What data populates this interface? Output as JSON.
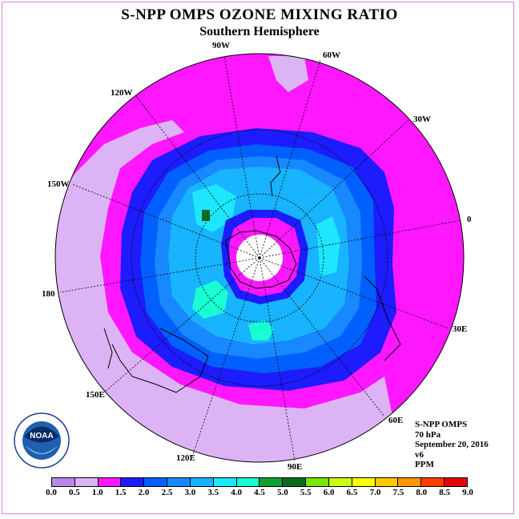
{
  "title": "S-NPP OMPS OZONE MIXING RATIO",
  "subtitle": "Southern Hemisphere",
  "longitude_labels": {
    "lon_90w": "90W",
    "lon_60w": "60W",
    "lon_120w": "120W",
    "lon_30w": "30W",
    "lon_150w": "150W",
    "lon_0": "0",
    "lon_180": "180",
    "lon_30e": "30E",
    "lon_150e": "150E",
    "lon_60e": "60E",
    "lon_120e": "120E",
    "lon_90e": "90E"
  },
  "info": {
    "instrument": "S-NPP OMPS",
    "level": "70 hPa",
    "date": "September 20, 2016",
    "version": "v6",
    "units": "PPM"
  },
  "logo": {
    "text": "NOAA"
  },
  "colorbar": {
    "ticks": [
      "0.0",
      "0.5",
      "1.0",
      "1.5",
      "2.0",
      "2.5",
      "3.0",
      "3.5",
      "4.0",
      "4.5",
      "5.0",
      "5.5",
      "6.0",
      "6.5",
      "7.0",
      "7.5",
      "8.0",
      "8.5",
      "9.0"
    ],
    "colors": [
      "#b986f0",
      "#dcb4f5",
      "#ff18ff",
      "#1c1cff",
      "#0060ff",
      "#1888ff",
      "#18b4ff",
      "#1ee6ff",
      "#18ffd2",
      "#10a030",
      "#0a6b1e",
      "#78e60a",
      "#c8ff10",
      "#ffff00",
      "#ffc800",
      "#ff9600",
      "#ff3c00",
      "#e60000",
      "#8b5a3c"
    ]
  }
}
